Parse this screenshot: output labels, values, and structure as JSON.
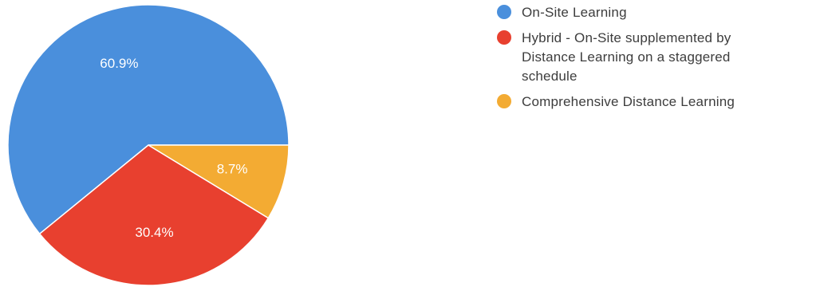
{
  "chart_data": {
    "type": "pie",
    "title": "",
    "start_angle_deg": 0,
    "direction": "counterclockwise",
    "slices": [
      {
        "label": "On-Site Learning",
        "value": 60.9,
        "display": "60.9%",
        "color": "#4a8fdc",
        "legend_lines": [
          "On-Site Learning"
        ]
      },
      {
        "label": "Hybrid - On-Site supplemented by Distance Learning on a staggered schedule",
        "value": 30.4,
        "display": "30.4%",
        "color": "#e8402f",
        "legend_lines": [
          "Hybrid - On-Site supplemented by",
          "Distance Learning on a staggered",
          "schedule"
        ]
      },
      {
        "label": "Comprehensive Distance Learning",
        "value": 8.7,
        "display": "8.7%",
        "color": "#f3ab33",
        "legend_lines": [
          "Comprehensive Distance Learning"
        ]
      }
    ],
    "legend_position": "right"
  }
}
